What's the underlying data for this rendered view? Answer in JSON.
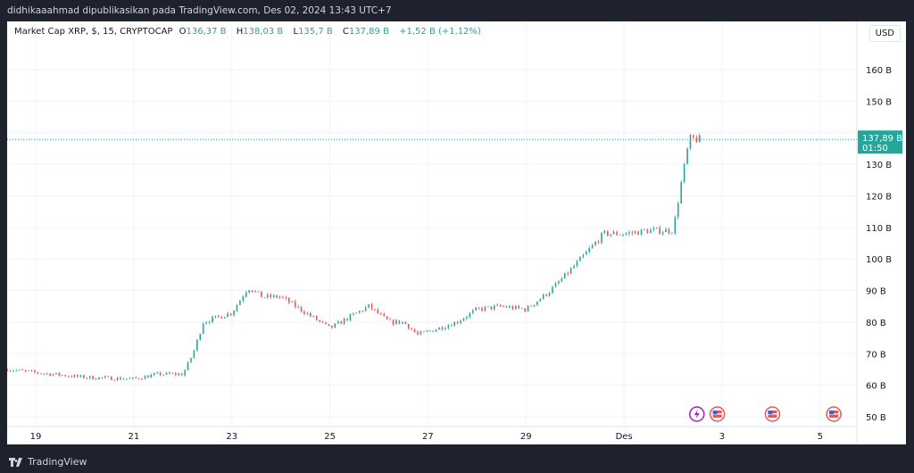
{
  "header": {
    "published": "didhikaaahmad dipublikasikan pada TradingView.com, Des 02, 2024 13:43 UTC+7"
  },
  "legend": {
    "symbol": "Market Cap XRP, $, 15, CRYPTOCAP",
    "o_label": "O",
    "o": "136,37 B",
    "h_label": "H",
    "h": "138,03 B",
    "l_label": "L",
    "l": "135,7 B",
    "c_label": "C",
    "c": "137,89 B",
    "change": "+1,52 B (+1,12%)"
  },
  "currency_button": "USD",
  "last_price": {
    "value": "137,89 B",
    "countdown": "01:50"
  },
  "footer": {
    "brand": "TradingView"
  },
  "colors": {
    "up": "#26a69a",
    "down": "#ef5350",
    "background": "#1e222d"
  },
  "event_icons": [
    "lightning-icon",
    "us-flag-icon",
    "us-flag-icon",
    "us-flag-icon"
  ],
  "chart_data": {
    "type": "candlestick",
    "interval": "15",
    "y_unit": "B USD",
    "ylim": [
      48,
      168
    ],
    "y_ticks": [
      50,
      60,
      70,
      80,
      90,
      100,
      110,
      120,
      130,
      140,
      150,
      160
    ],
    "y_tick_labels": [
      "50 B",
      "60 B",
      "70 B",
      "80 B",
      "90 B",
      "100 B",
      "110 B",
      "120 B",
      "130 B",
      "140 B",
      "150 B",
      "160 B"
    ],
    "x_tick_labels": [
      "19",
      "21",
      "23",
      "25",
      "27",
      "29",
      "Des",
      "3",
      "5"
    ],
    "x_ticks": [
      "2024-11-19",
      "2024-11-21",
      "2024-11-23",
      "2024-11-25",
      "2024-11-27",
      "2024-11-29",
      "2024-12-01",
      "2024-12-03",
      "2024-12-05"
    ],
    "xlim": [
      "2024-11-18T10:00",
      "2024-12-05T18:00"
    ],
    "approx_path": [
      [
        "2024-11-18T10:00",
        65
      ],
      [
        "2024-11-19T00:00",
        64
      ],
      [
        "2024-11-20T00:00",
        62.5
      ],
      [
        "2024-11-21T00:00",
        62
      ],
      [
        "2024-11-21T12:00",
        63.5
      ],
      [
        "2024-11-22T00:00",
        63.5
      ],
      [
        "2024-11-22T05:00",
        70
      ],
      [
        "2024-11-22T10:00",
        80
      ],
      [
        "2024-11-23T00:00",
        83
      ],
      [
        "2024-11-23T08:00",
        91
      ],
      [
        "2024-11-23T15:00",
        88
      ],
      [
        "2024-11-24T00:00",
        88
      ],
      [
        "2024-11-24T12:00",
        83
      ],
      [
        "2024-11-25T00:00",
        78
      ],
      [
        "2024-11-25T08:00",
        81
      ],
      [
        "2024-11-25T19:00",
        85
      ],
      [
        "2024-11-26T05:00",
        80
      ],
      [
        "2024-11-26T12:00",
        80
      ],
      [
        "2024-11-26T19:00",
        76
      ],
      [
        "2024-11-27T05:00",
        78
      ],
      [
        "2024-11-27T14:00",
        80
      ],
      [
        "2024-11-28T00:00",
        84
      ],
      [
        "2024-11-28T12:00",
        85
      ],
      [
        "2024-11-29T00:00",
        84
      ],
      [
        "2024-11-29T12:00",
        90
      ],
      [
        "2024-11-30T00:00",
        98
      ],
      [
        "2024-11-30T14:00",
        108
      ],
      [
        "2024-12-01T00:00",
        108
      ],
      [
        "2024-12-01T12:00",
        109
      ],
      [
        "2024-12-02T00:00",
        109
      ],
      [
        "2024-12-02T04:00",
        124
      ],
      [
        "2024-12-02T08:00",
        138
      ],
      [
        "2024-12-02T13:43",
        137.89
      ]
    ],
    "last": 137.89
  }
}
